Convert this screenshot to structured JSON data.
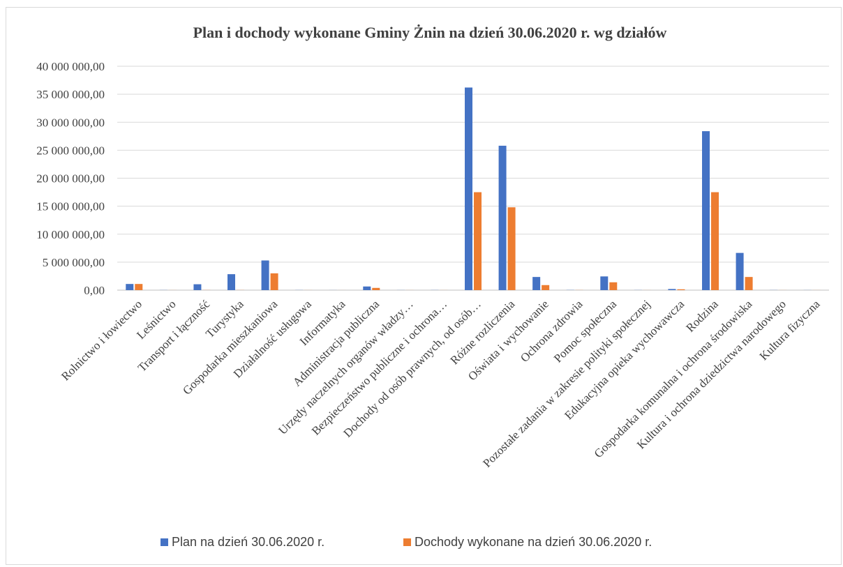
{
  "chart_data": {
    "type": "bar",
    "title": "Plan i dochody wykonane Gminy Żnin na dzień 30.06.2020 r. wg działów",
    "xlabel": "",
    "ylabel": "",
    "ylim": [
      0,
      40000000
    ],
    "yticks": [
      "0,00",
      "5 000 000,00",
      "10 000 000,00",
      "15 000 000,00",
      "20 000 000,00",
      "25 000 000,00",
      "30 000 000,00",
      "35 000 000,00",
      "40 000 000,00"
    ],
    "grid": true,
    "legend_position": "bottom",
    "categories": [
      "Rolnictwo i łowiectwo",
      "Leśnictwo",
      "Transport i łączność",
      "Turystyka",
      "Gospodarka mieszkaniowa",
      "Działalność usługowa",
      "Informatyka",
      "Administracja publiczna",
      "Urzędy naczelnych organów władzy…",
      "Bezpieczeństwo publiczne i ochrona…",
      "Dochody od osób prawnych, od osób…",
      "Różne rozliczenia",
      "Oświata i wychowanie",
      "Ochrona zdrowia",
      "Pomoc społeczna",
      "Pozostałe zadania w zakresie polityki społecznej",
      "Edukacyjna opieka wychowawcza",
      "Rodzina",
      "Gospodarka komunalna i ochrona środowiska",
      "Kultura i ochrona dziedzictwa narodowego",
      "Kultura fizyczna"
    ],
    "series": [
      {
        "name": "Plan na dzień 30.06.2020 r.",
        "color": "#4472c4",
        "values": [
          1100000,
          20000,
          1050000,
          2850000,
          5300000,
          20000,
          10000,
          650000,
          15000,
          20000,
          36200000,
          25800000,
          2350000,
          30000,
          2450000,
          20000,
          200000,
          28400000,
          6650000,
          20000,
          15000
        ]
      },
      {
        "name": "Dochody wykonane na dzień 30.06.2020 r.",
        "color": "#ed7d31",
        "values": [
          1100000,
          10000,
          20000,
          20000,
          3000000,
          10000,
          5000,
          400000,
          10000,
          10000,
          17500000,
          14800000,
          900000,
          20000,
          1400000,
          10000,
          150000,
          17500000,
          2350000,
          10000,
          10000
        ]
      }
    ]
  }
}
